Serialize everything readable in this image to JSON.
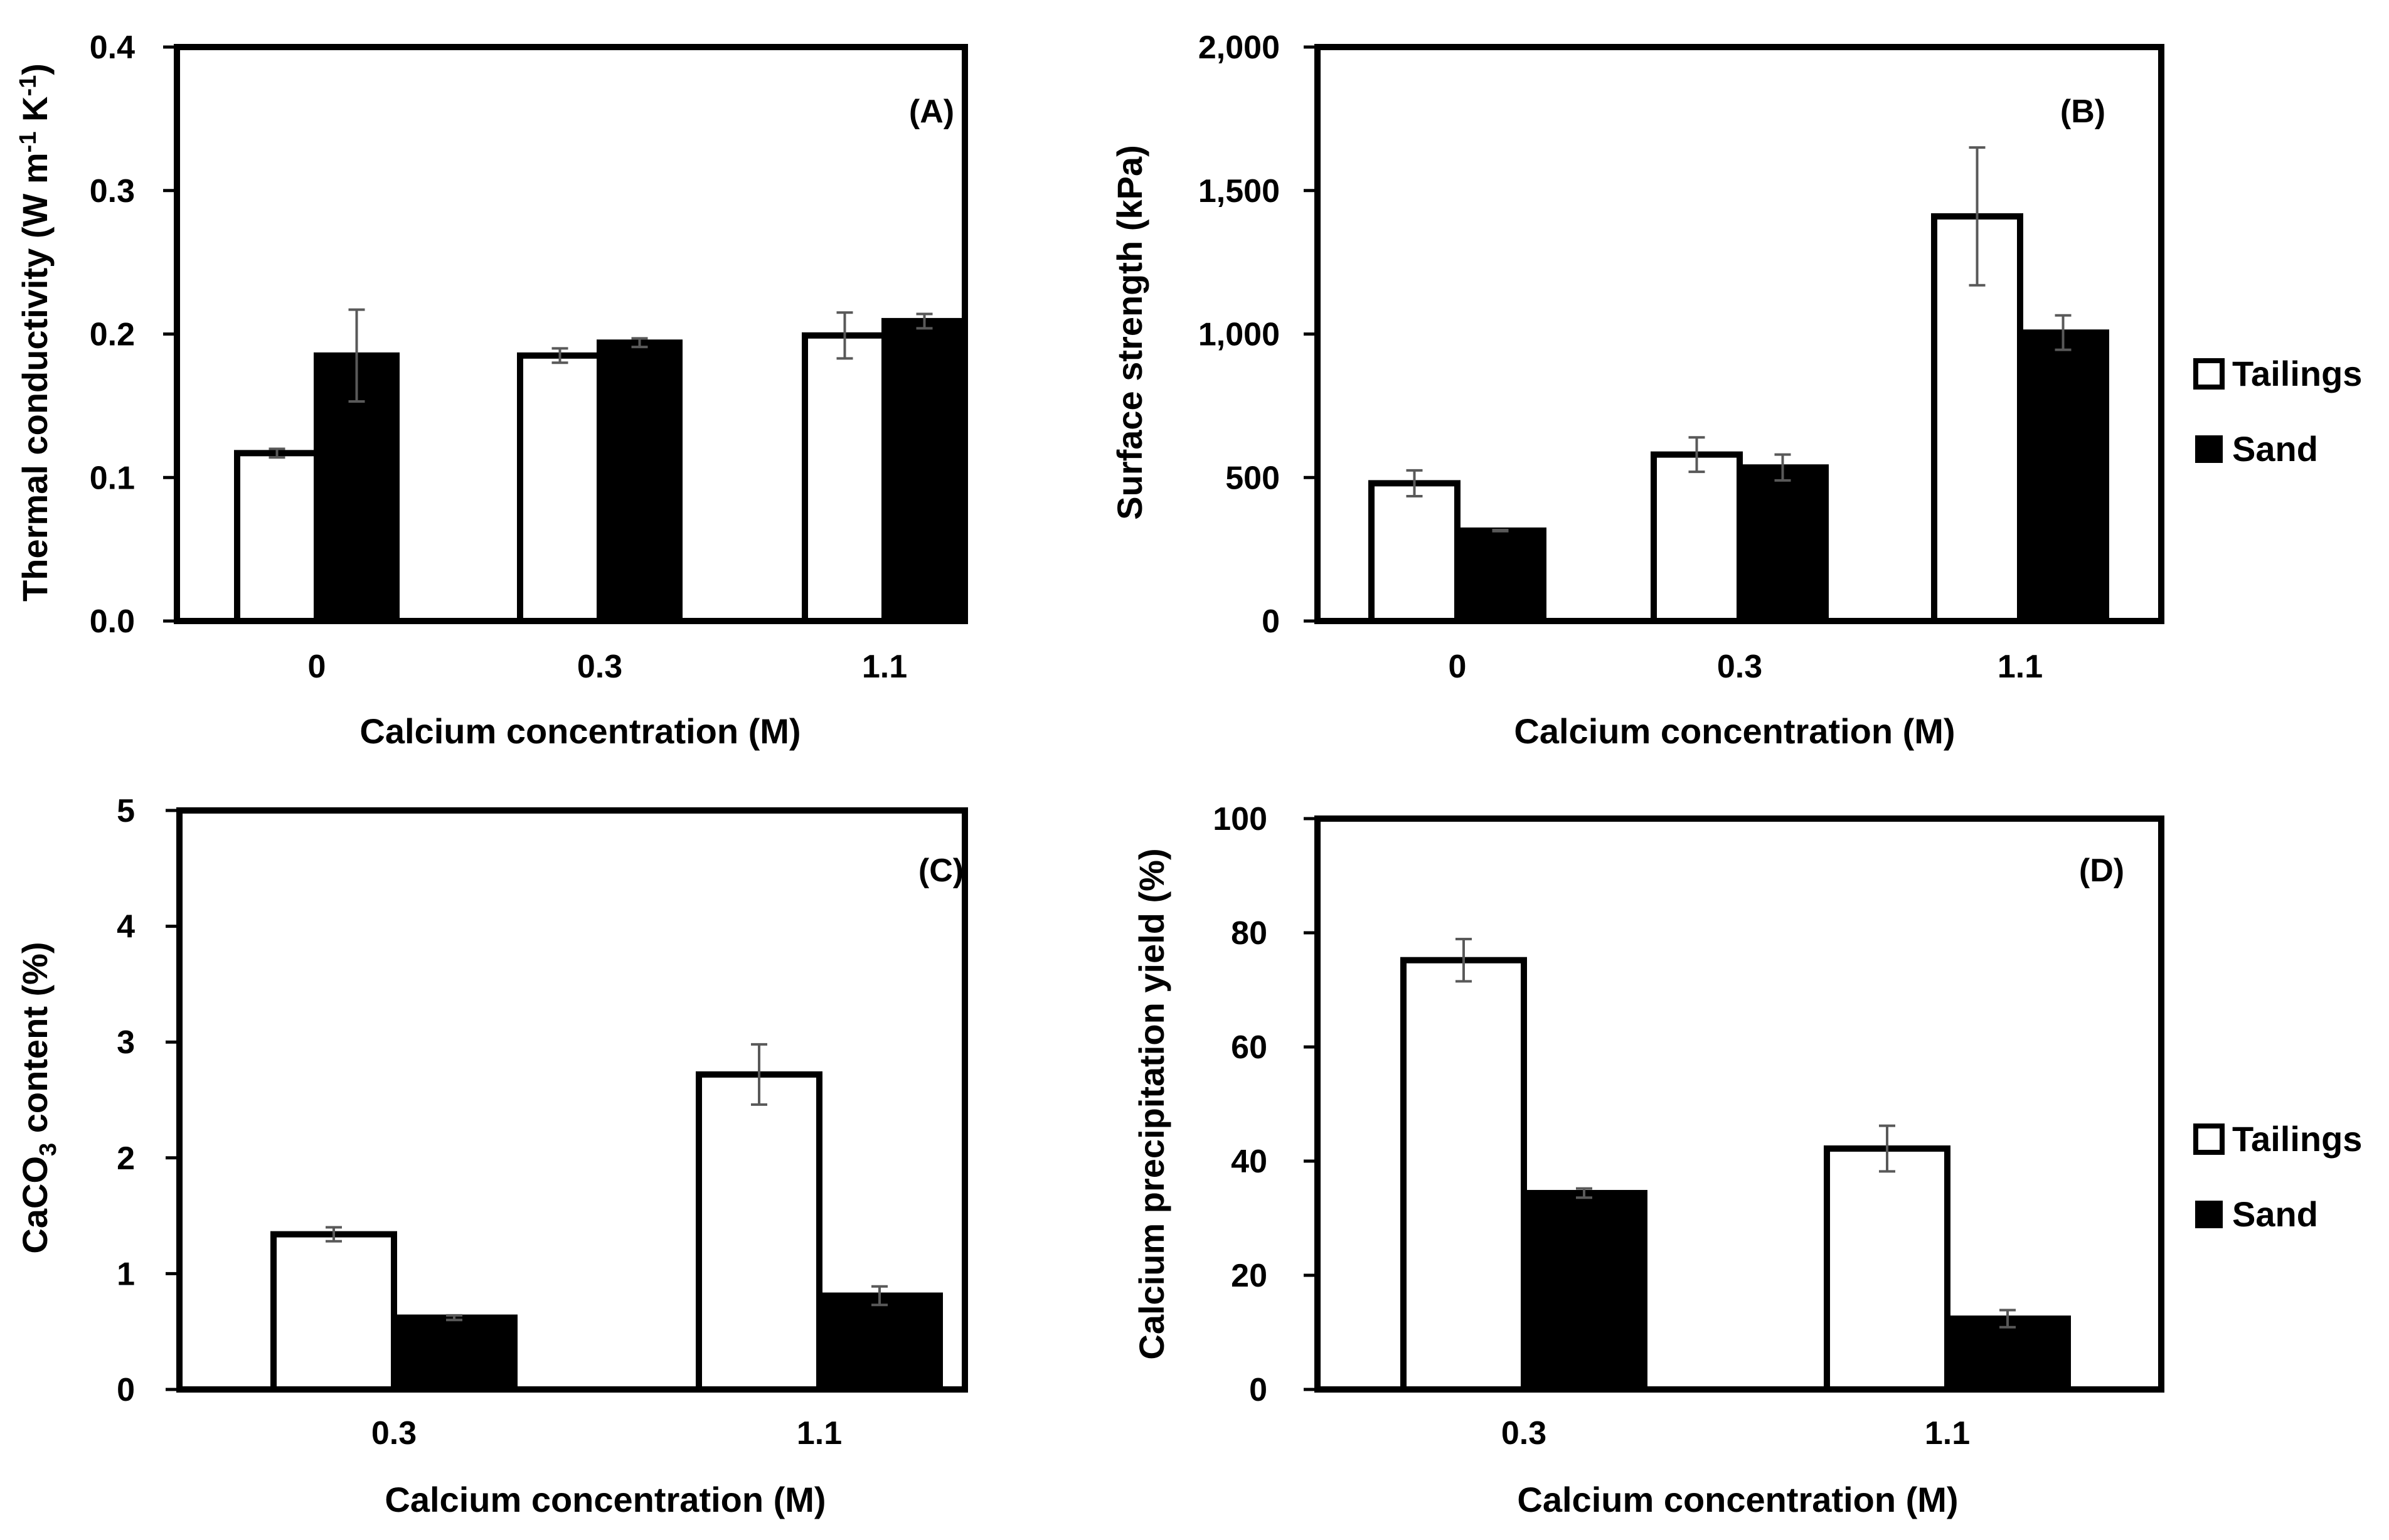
{
  "chart_data": [
    {
      "panel": "(A)",
      "type": "bar",
      "categories": [
        "0",
        "0.3",
        "1.1"
      ],
      "series": [
        {
          "name": "Tailings",
          "values": [
            0.117,
            0.185,
            0.199
          ],
          "errors": [
            0.003,
            0.005,
            0.016
          ]
        },
        {
          "name": "Sand",
          "values": [
            0.185,
            0.194,
            0.209
          ],
          "errors": [
            0.032,
            0.003,
            0.005
          ]
        }
      ],
      "xlabel": "Calcium concentration (M)",
      "ylabel_parts": [
        {
          "t": "Thermal conductivity (W m"
        },
        {
          "t": "-1",
          "sup": true
        },
        {
          "t": " K"
        },
        {
          "t": "-1",
          "sup": true
        },
        {
          "t": ")"
        }
      ],
      "ylim": [
        0,
        0.4
      ],
      "yticks": [
        0,
        0.1,
        0.2,
        0.3,
        0.4
      ],
      "ytick_labels": [
        "0.0",
        "0.1",
        "0.2",
        "0.3",
        "0.4"
      ],
      "legend": false
    },
    {
      "panel": "(B)",
      "type": "bar",
      "categories": [
        "0",
        "0.3",
        "1.1"
      ],
      "series": [
        {
          "name": "Tailings",
          "values": [
            480,
            580,
            1410
          ],
          "errors": [
            45,
            60,
            240
          ]
        },
        {
          "name": "Sand",
          "values": [
            315,
            535,
            1005
          ],
          "errors": [
            2,
            45,
            60
          ]
        }
      ],
      "xlabel": "Calcium concentration (M)",
      "ylabel_parts": [
        {
          "t": "Surface strength (kPa)"
        }
      ],
      "ylim": [
        0,
        2000
      ],
      "yticks": [
        0,
        500,
        1000,
        1500,
        2000
      ],
      "ytick_labels": [
        "0",
        "500",
        "1,000",
        "1,500",
        "2,000"
      ],
      "legend": true
    },
    {
      "panel": "(C)",
      "type": "bar",
      "categories": [
        "0.3",
        "1.1"
      ],
      "series": [
        {
          "name": "Tailings",
          "values": [
            1.34,
            2.72
          ],
          "errors": [
            0.06,
            0.26
          ]
        },
        {
          "name": "Sand",
          "values": [
            0.62,
            0.81
          ],
          "errors": [
            0.02,
            0.08
          ]
        }
      ],
      "xlabel": "Calcium concentration (M)",
      "ylabel_parts": [
        {
          "t": "CaCO"
        },
        {
          "t": "3",
          "sub": true
        },
        {
          "t": " content (%)"
        }
      ],
      "ylim": [
        0,
        5
      ],
      "yticks": [
        0,
        1,
        2,
        3,
        4,
        5
      ],
      "ytick_labels": [
        "0",
        "1",
        "2",
        "3",
        "4",
        "5"
      ],
      "legend": false
    },
    {
      "panel": "(D)",
      "type": "bar",
      "categories": [
        "0.3",
        "1.1"
      ],
      "series": [
        {
          "name": "Tailings",
          "values": [
            75.2,
            42.2
          ],
          "errors": [
            3.7,
            4.0
          ]
        },
        {
          "name": "Sand",
          "values": [
            34.4,
            12.4
          ],
          "errors": [
            0.8,
            1.5
          ]
        }
      ],
      "xlabel": "Calcium concentration (M)",
      "ylabel_parts": [
        {
          "t": "Calcium precipitation yield (%)"
        }
      ],
      "ylim": [
        0,
        100
      ],
      "yticks": [
        0,
        20,
        40,
        60,
        80,
        100
      ],
      "ytick_labels": [
        "0",
        "20",
        "40",
        "60",
        "80",
        "100"
      ],
      "legend": true
    }
  ],
  "legend_entries": [
    "Tailings",
    "Sand"
  ],
  "colors": {
    "tailings_fill": "#ffffff",
    "sand_fill": "#000000",
    "outline": "#000000",
    "error_bar": "#595959"
  }
}
